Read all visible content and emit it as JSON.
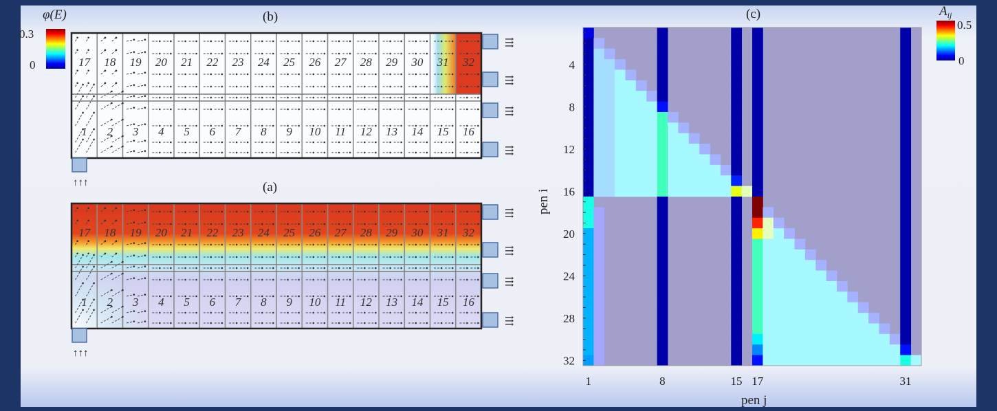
{
  "panels": {
    "b": {
      "label": "(b)"
    },
    "a": {
      "label": "(a)"
    },
    "c": {
      "label": "(c)"
    }
  },
  "diagram": {
    "top_row_pens": [
      "17",
      "18",
      "19",
      "20",
      "21",
      "22",
      "23",
      "24",
      "25",
      "26",
      "27",
      "28",
      "29",
      "30",
      "31",
      "32"
    ],
    "bottom_row_pens": [
      "1",
      "2",
      "3",
      "4",
      "5",
      "6",
      "7",
      "8",
      "9",
      "10",
      "11",
      "12",
      "13",
      "14",
      "15",
      "16"
    ],
    "inlet_marker": "↑↑↑",
    "outlet_marker": "⇶",
    "colorbar": {
      "title": "φ(E)",
      "max_label": "0.3",
      "min_label": "0",
      "range": [
        0,
        0.3
      ],
      "colormap": "jet"
    }
  },
  "chart_data": {
    "type": "heatmap",
    "title": "(c)",
    "xlabel": "pen j",
    "ylabel": "pen i",
    "x_ticks": [
      "1",
      "8",
      "15",
      "17",
      "31"
    ],
    "y_ticks": [
      "4",
      "8",
      "12",
      "16",
      "20",
      "24",
      "28",
      "32"
    ],
    "colorbar": {
      "title": "A_ij",
      "title_display": "A",
      "title_sub": "ij",
      "max_label": "0.5",
      "min_label": "0",
      "range": [
        0,
        0.5
      ],
      "colormap": "jet"
    },
    "masked_color": "#a29fca",
    "matrix": [
      [
        0.05,
        null,
        null,
        null,
        null,
        null,
        null,
        0.02,
        null,
        null,
        null,
        null,
        null,
        null,
        0.02,
        null,
        0.02,
        null,
        null,
        null,
        null,
        null,
        null,
        null,
        null,
        null,
        null,
        null,
        null,
        null,
        0.02,
        null
      ],
      [
        0.02,
        0.08,
        null,
        null,
        null,
        null,
        null,
        0.02,
        null,
        null,
        null,
        null,
        null,
        null,
        0.02,
        null,
        0.02,
        null,
        null,
        null,
        null,
        null,
        null,
        null,
        null,
        null,
        null,
        null,
        null,
        null,
        0.02,
        null
      ],
      [
        0.02,
        0.14,
        0.08,
        null,
        null,
        null,
        null,
        0.02,
        null,
        null,
        null,
        null,
        null,
        null,
        0.02,
        null,
        0.02,
        null,
        null,
        null,
        null,
        null,
        null,
        null,
        null,
        null,
        null,
        null,
        null,
        null,
        0.02,
        null
      ],
      [
        0.02,
        0.14,
        0.14,
        0.08,
        null,
        null,
        null,
        0.02,
        null,
        null,
        null,
        null,
        null,
        null,
        0.02,
        null,
        0.02,
        null,
        null,
        null,
        null,
        null,
        null,
        null,
        null,
        null,
        null,
        null,
        null,
        null,
        0.02,
        null
      ],
      [
        0.02,
        0.14,
        0.14,
        0.18,
        0.08,
        null,
        null,
        0.02,
        null,
        null,
        null,
        null,
        null,
        null,
        0.02,
        null,
        0.02,
        null,
        null,
        null,
        null,
        null,
        null,
        null,
        null,
        null,
        null,
        null,
        null,
        null,
        0.02,
        null
      ],
      [
        0.02,
        0.14,
        0.14,
        0.18,
        0.18,
        0.08,
        null,
        0.02,
        null,
        null,
        null,
        null,
        null,
        null,
        0.02,
        null,
        0.02,
        null,
        null,
        null,
        null,
        null,
        null,
        null,
        null,
        null,
        null,
        null,
        null,
        null,
        0.02,
        null
      ],
      [
        0.02,
        0.14,
        0.14,
        0.18,
        0.18,
        0.18,
        0.08,
        0.02,
        null,
        null,
        null,
        null,
        null,
        null,
        0.02,
        null,
        0.02,
        null,
        null,
        null,
        null,
        null,
        null,
        null,
        null,
        null,
        null,
        null,
        null,
        null,
        0.02,
        null
      ],
      [
        0.02,
        0.14,
        0.14,
        0.18,
        0.18,
        0.18,
        0.18,
        0.07,
        null,
        null,
        null,
        null,
        null,
        null,
        0.02,
        null,
        0.02,
        null,
        null,
        null,
        null,
        null,
        null,
        null,
        null,
        null,
        null,
        null,
        null,
        null,
        0.02,
        null
      ],
      [
        0.02,
        0.14,
        0.14,
        0.18,
        0.18,
        0.18,
        0.18,
        0.22,
        0.08,
        null,
        null,
        null,
        null,
        null,
        0.02,
        null,
        0.02,
        null,
        null,
        null,
        null,
        null,
        null,
        null,
        null,
        null,
        null,
        null,
        null,
        null,
        0.02,
        null
      ],
      [
        0.02,
        0.14,
        0.14,
        0.18,
        0.18,
        0.18,
        0.18,
        0.22,
        0.18,
        0.08,
        null,
        null,
        null,
        null,
        0.02,
        null,
        0.02,
        null,
        null,
        null,
        null,
        null,
        null,
        null,
        null,
        null,
        null,
        null,
        null,
        null,
        0.02,
        null
      ],
      [
        0.02,
        0.14,
        0.14,
        0.18,
        0.18,
        0.18,
        0.18,
        0.22,
        0.18,
        0.18,
        0.08,
        null,
        null,
        null,
        0.02,
        null,
        0.02,
        null,
        null,
        null,
        null,
        null,
        null,
        null,
        null,
        null,
        null,
        null,
        null,
        null,
        0.02,
        null
      ],
      [
        0.02,
        0.14,
        0.14,
        0.18,
        0.18,
        0.18,
        0.18,
        0.22,
        0.18,
        0.18,
        0.18,
        0.08,
        null,
        null,
        0.02,
        null,
        0.02,
        null,
        null,
        null,
        null,
        null,
        null,
        null,
        null,
        null,
        null,
        null,
        null,
        null,
        0.02,
        null
      ],
      [
        0.02,
        0.14,
        0.14,
        0.18,
        0.18,
        0.18,
        0.18,
        0.22,
        0.18,
        0.18,
        0.18,
        0.18,
        0.08,
        null,
        0.02,
        null,
        0.02,
        null,
        null,
        null,
        null,
        null,
        null,
        null,
        null,
        null,
        null,
        null,
        null,
        null,
        0.02,
        null
      ],
      [
        0.02,
        0.14,
        0.14,
        0.18,
        0.18,
        0.18,
        0.18,
        0.22,
        0.18,
        0.18,
        0.18,
        0.18,
        0.18,
        0.08,
        0.02,
        null,
        0.02,
        null,
        null,
        null,
        null,
        null,
        null,
        null,
        null,
        null,
        null,
        null,
        null,
        null,
        0.02,
        null
      ],
      [
        0.02,
        0.14,
        0.14,
        0.18,
        0.18,
        0.18,
        0.18,
        0.22,
        0.18,
        0.18,
        0.18,
        0.18,
        0.18,
        0.18,
        0.08,
        null,
        0.02,
        null,
        null,
        null,
        null,
        null,
        null,
        null,
        null,
        null,
        null,
        null,
        null,
        null,
        0.02,
        null
      ],
      [
        0.02,
        0.14,
        0.14,
        0.18,
        0.18,
        0.18,
        0.18,
        0.22,
        0.18,
        0.18,
        0.18,
        0.18,
        0.18,
        0.18,
        0.3,
        0.28,
        0.02,
        null,
        null,
        null,
        null,
        null,
        null,
        null,
        null,
        null,
        null,
        null,
        null,
        null,
        0.02,
        null
      ],
      [
        0.2,
        null,
        null,
        null,
        null,
        null,
        null,
        0.02,
        null,
        null,
        null,
        null,
        null,
        null,
        0.02,
        null,
        0.5,
        null,
        null,
        null,
        null,
        null,
        null,
        null,
        null,
        null,
        null,
        null,
        null,
        null,
        0.02,
        null
      ],
      [
        0.2,
        0.06,
        null,
        null,
        null,
        null,
        null,
        0.02,
        null,
        null,
        null,
        null,
        null,
        null,
        0.02,
        null,
        0.5,
        0.08,
        null,
        null,
        null,
        null,
        null,
        null,
        null,
        null,
        null,
        null,
        null,
        null,
        0.02,
        null
      ],
      [
        0.2,
        0.06,
        null,
        null,
        null,
        null,
        null,
        0.02,
        null,
        null,
        null,
        null,
        null,
        null,
        0.02,
        null,
        0.42,
        0.28,
        0.08,
        null,
        null,
        null,
        null,
        null,
        null,
        null,
        null,
        null,
        null,
        null,
        0.02,
        null
      ],
      [
        0.15,
        0.06,
        null,
        null,
        null,
        null,
        null,
        0.02,
        null,
        null,
        null,
        null,
        null,
        null,
        0.02,
        null,
        0.32,
        0.28,
        0.18,
        0.08,
        null,
        null,
        null,
        null,
        null,
        null,
        null,
        null,
        null,
        null,
        0.02,
        null
      ],
      [
        0.15,
        0.06,
        null,
        null,
        null,
        null,
        null,
        0.02,
        null,
        null,
        null,
        null,
        null,
        null,
        0.02,
        null,
        0.22,
        0.18,
        0.18,
        0.18,
        0.08,
        null,
        null,
        null,
        null,
        null,
        null,
        null,
        null,
        null,
        0.02,
        null
      ],
      [
        0.15,
        0.06,
        null,
        null,
        null,
        null,
        null,
        0.02,
        null,
        null,
        null,
        null,
        null,
        null,
        0.02,
        null,
        0.22,
        0.18,
        0.18,
        0.18,
        0.18,
        0.08,
        null,
        null,
        null,
        null,
        null,
        null,
        null,
        null,
        0.02,
        null
      ],
      [
        0.15,
        0.06,
        null,
        null,
        null,
        null,
        null,
        0.02,
        null,
        null,
        null,
        null,
        null,
        null,
        0.02,
        null,
        0.22,
        0.18,
        0.18,
        0.18,
        0.18,
        0.18,
        0.08,
        null,
        null,
        null,
        null,
        null,
        null,
        null,
        0.02,
        null
      ],
      [
        0.15,
        0.06,
        null,
        null,
        null,
        null,
        null,
        0.02,
        null,
        null,
        null,
        null,
        null,
        null,
        0.02,
        null,
        0.22,
        0.18,
        0.18,
        0.18,
        0.18,
        0.18,
        0.18,
        0.08,
        null,
        null,
        null,
        null,
        null,
        null,
        0.02,
        null
      ],
      [
        0.15,
        0.06,
        null,
        null,
        null,
        null,
        null,
        0.02,
        null,
        null,
        null,
        null,
        null,
        null,
        0.02,
        null,
        0.22,
        0.18,
        0.18,
        0.18,
        0.18,
        0.18,
        0.18,
        0.18,
        0.08,
        null,
        null,
        null,
        null,
        null,
        0.02,
        null
      ],
      [
        0.15,
        0.06,
        null,
        null,
        null,
        null,
        null,
        0.02,
        null,
        null,
        null,
        null,
        null,
        null,
        0.02,
        null,
        0.22,
        0.18,
        0.18,
        0.18,
        0.18,
        0.18,
        0.18,
        0.18,
        0.18,
        0.08,
        null,
        null,
        null,
        null,
        0.02,
        null
      ],
      [
        0.15,
        0.06,
        null,
        null,
        null,
        null,
        null,
        0.02,
        null,
        null,
        null,
        null,
        null,
        null,
        0.02,
        null,
        0.22,
        0.18,
        0.18,
        0.18,
        0.18,
        0.18,
        0.18,
        0.18,
        0.18,
        0.18,
        0.08,
        null,
        null,
        null,
        0.02,
        null
      ],
      [
        0.15,
        0.06,
        null,
        null,
        null,
        null,
        null,
        0.02,
        null,
        null,
        null,
        null,
        null,
        null,
        0.02,
        null,
        0.22,
        0.18,
        0.18,
        0.18,
        0.18,
        0.18,
        0.18,
        0.18,
        0.18,
        0.18,
        0.18,
        0.08,
        null,
        null,
        0.02,
        null
      ],
      [
        0.15,
        0.06,
        null,
        null,
        null,
        null,
        null,
        0.02,
        null,
        null,
        null,
        null,
        null,
        null,
        0.02,
        null,
        0.22,
        0.18,
        0.18,
        0.18,
        0.18,
        0.18,
        0.18,
        0.18,
        0.18,
        0.18,
        0.18,
        0.18,
        0.08,
        null,
        0.02,
        null
      ],
      [
        0.15,
        0.06,
        null,
        null,
        null,
        null,
        null,
        0.02,
        null,
        null,
        null,
        null,
        null,
        null,
        0.02,
        null,
        0.18,
        0.18,
        0.18,
        0.18,
        0.18,
        0.18,
        0.18,
        0.18,
        0.18,
        0.18,
        0.18,
        0.18,
        0.18,
        0.08,
        0.02,
        null
      ],
      [
        0.15,
        0.06,
        null,
        null,
        null,
        null,
        null,
        0.02,
        null,
        null,
        null,
        null,
        null,
        null,
        0.02,
        null,
        0.13,
        0.18,
        0.18,
        0.18,
        0.18,
        0.18,
        0.18,
        0.18,
        0.18,
        0.18,
        0.18,
        0.18,
        0.18,
        0.18,
        0.07,
        null
      ],
      [
        0.14,
        0.06,
        null,
        null,
        null,
        null,
        null,
        0.02,
        null,
        null,
        null,
        null,
        null,
        null,
        0.02,
        null,
        0.07,
        0.18,
        0.18,
        0.18,
        0.18,
        0.18,
        0.18,
        0.18,
        0.18,
        0.18,
        0.18,
        0.18,
        0.18,
        0.18,
        0.2,
        0.18
      ]
    ]
  }
}
